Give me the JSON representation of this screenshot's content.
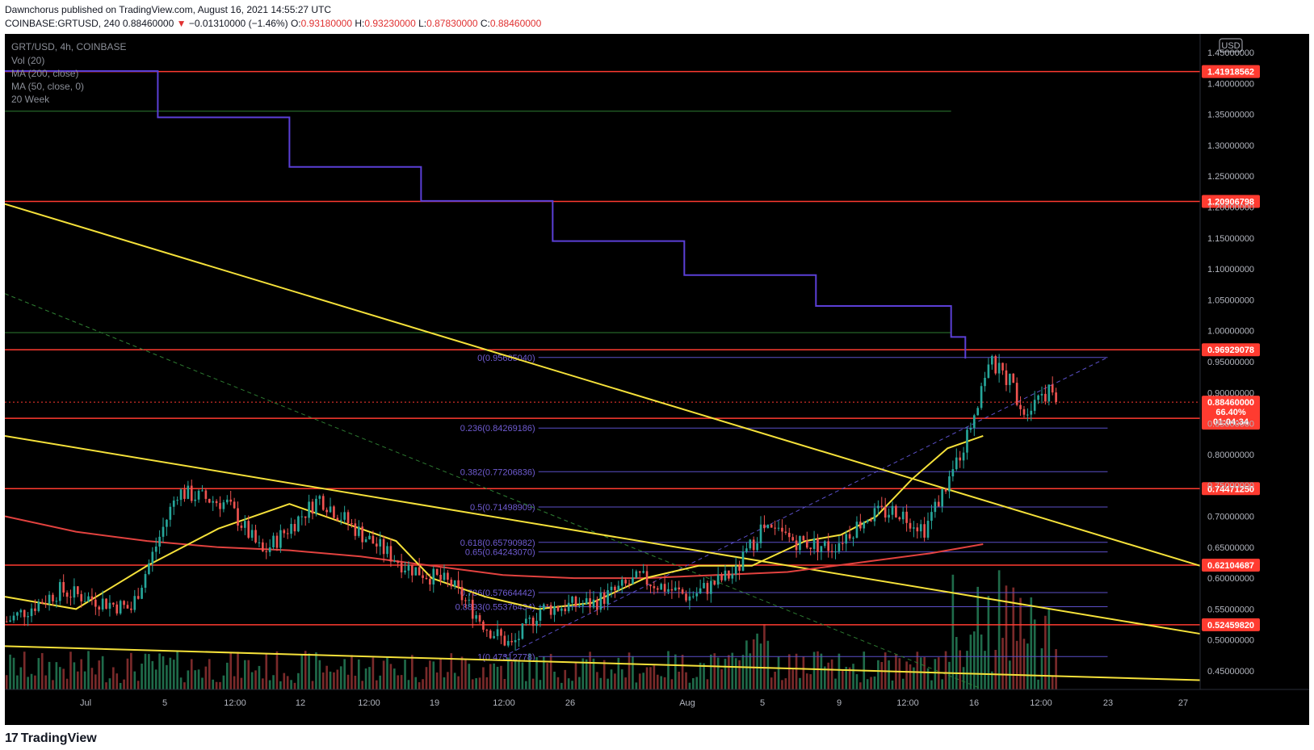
{
  "header": {
    "author": "Dawnchorus",
    "published_text": "published on TradingView.com, August 16, 2021 14:55:27 UTC",
    "symbol": "COINBASE:GRTUSD, 240",
    "last": "0.88460000",
    "change_arrow": "▼",
    "change": "−0.01310000 (−1.46%)",
    "open_label": "O:",
    "open": "0.93180000",
    "high_label": "H:",
    "high": "0.93230000",
    "low_label": "L:",
    "low": "0.87830000",
    "close_label": "C:",
    "close": "0.88460000"
  },
  "legend": {
    "title": "GRT/USD, 4h, COINBASE",
    "items": [
      "Vol (20)",
      "MA (200, close)",
      "MA (50, close, 0)",
      "20 Week"
    ]
  },
  "price_axis": {
    "currency": "USD",
    "ticks": [
      "1.45000000",
      "1.40000000",
      "1.35000000",
      "1.30000000",
      "1.25000000",
      "1.20000000",
      "1.15000000",
      "1.10000000",
      "1.05000000",
      "1.00000000",
      "0.95000000",
      "0.90000000",
      "0.85000000",
      "0.80000000",
      "0.75000000",
      "0.70000000",
      "0.65000000",
      "0.60000000",
      "0.55000000",
      "0.50000000",
      "0.45000000"
    ],
    "current_badge": {
      "price": "0.88460000",
      "pct": "66.40%",
      "countdown": "01:04:34"
    }
  },
  "time_axis": {
    "labels": [
      "Jul",
      "5",
      "12:00",
      "12",
      "12:00",
      "19",
      "12:00",
      "26",
      "Aug",
      "5",
      "9",
      "12:00",
      "16",
      "12:00",
      "23",
      "27"
    ]
  },
  "footer": {
    "logo_text": "TradingView"
  },
  "colors": {
    "background": "#000000",
    "candle_up": "#26a69a",
    "candle_down": "#ef5350",
    "volume_up": "#1f6b4a",
    "volume_down": "#7a2a2a",
    "horizontal_level": "#ff3b30",
    "green_level": "#2e7d32",
    "trendline": "#f5e13a",
    "ma50": "#f5e13a",
    "ma200": "#e2423f",
    "twenty_week": "#5b3fd6",
    "fib": "#5b4fc8",
    "badge_red": "#ff3b30"
  },
  "chart_data": {
    "type": "candlestick",
    "title": "GRT/USD, 4h, COINBASE",
    "y_range": [
      0.42,
      1.48
    ],
    "x_range_bars": [
      0,
      336
    ],
    "horizontal_levels": [
      {
        "price": 1.41918562,
        "label": "1.41918562"
      },
      {
        "price": 1.20906798,
        "label": "1.20906798"
      },
      {
        "price": 0.96929078,
        "label": "0.96929078"
      },
      {
        "price": 0.85845156,
        "label": "0.85845156"
      },
      {
        "price": 0.7447125,
        "label": "0.74471250"
      },
      {
        "price": 0.62104687,
        "label": "0.62104687"
      },
      {
        "price": 0.5245982,
        "label": "0.52459820"
      }
    ],
    "green_levels": [
      1.355,
      0.997
    ],
    "fib_levels": [
      {
        "ratio": "0",
        "price": 0.9568504,
        "label": "0(0.95685040)"
      },
      {
        "ratio": "0.236",
        "price": 0.84269186,
        "label": "0.236(0.84269186)"
      },
      {
        "ratio": "0.382",
        "price": 0.77206836,
        "label": "0.382(0.77206836)"
      },
      {
        "ratio": "0.5",
        "price": 0.71498909,
        "label": "0.5(0.71498909)"
      },
      {
        "ratio": "0.618",
        "price": 0.65790982,
        "label": "0.618(0.65790982)"
      },
      {
        "ratio": "0.65",
        "price": 0.6424307,
        "label": "0.65(0.64243070)"
      },
      {
        "ratio": "0.786",
        "price": 0.57664442,
        "label": "0.786(0.57664442)"
      },
      {
        "ratio": "0.8893",
        "price": 0.55376434,
        "label": "0.8893(0.55376434)"
      },
      {
        "ratio": "1",
        "price": 0.47312778,
        "label": "1(0.47312778)"
      }
    ],
    "twenty_week_steps": [
      [
        0,
        1.42
      ],
      [
        43,
        1.345
      ],
      [
        80,
        1.265
      ],
      [
        117,
        1.21
      ],
      [
        154,
        1.145
      ],
      [
        191,
        1.09
      ],
      [
        228,
        1.04
      ],
      [
        266,
        0.99
      ],
      [
        270,
        0.955
      ]
    ],
    "trendlines": [
      {
        "p1": [
          0,
          1.205
        ],
        "p2": [
          336,
          0.62
        ]
      },
      {
        "p1": [
          0,
          0.83
        ],
        "p2": [
          336,
          0.51
        ]
      },
      {
        "p1": [
          0,
          0.49
        ],
        "p2": [
          336,
          0.435
        ]
      }
    ],
    "ma50": [
      [
        0,
        0.57
      ],
      [
        20,
        0.55
      ],
      [
        40,
        0.62
      ],
      [
        60,
        0.68
      ],
      [
        80,
        0.72
      ],
      [
        90,
        0.7
      ],
      [
        110,
        0.66
      ],
      [
        120,
        0.6
      ],
      [
        135,
        0.57
      ],
      [
        150,
        0.55
      ],
      [
        165,
        0.56
      ],
      [
        180,
        0.6
      ],
      [
        195,
        0.62
      ],
      [
        210,
        0.62
      ],
      [
        225,
        0.66
      ],
      [
        235,
        0.67
      ],
      [
        245,
        0.7
      ],
      [
        255,
        0.76
      ],
      [
        265,
        0.81
      ],
      [
        275,
        0.83
      ]
    ],
    "ma200": [
      [
        0,
        0.7
      ],
      [
        20,
        0.675
      ],
      [
        40,
        0.66
      ],
      [
        60,
        0.65
      ],
      [
        80,
        0.645
      ],
      [
        100,
        0.635
      ],
      [
        120,
        0.62
      ],
      [
        140,
        0.605
      ],
      [
        160,
        0.6
      ],
      [
        180,
        0.6
      ],
      [
        200,
        0.605
      ],
      [
        220,
        0.61
      ],
      [
        240,
        0.625
      ],
      [
        260,
        0.64
      ],
      [
        275,
        0.655
      ]
    ],
    "candles_summary": "approx 276 4h candles from ~0.52 (early Jul) to ~0.95 (Aug 13), last close 0.8846"
  }
}
